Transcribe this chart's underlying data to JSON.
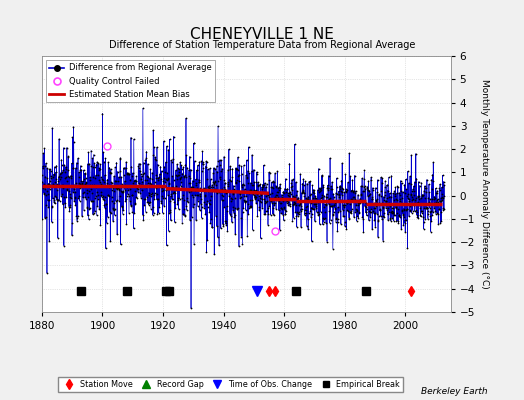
{
  "title": "CHENEYVILLE 1 NE",
  "subtitle": "Difference of Station Temperature Data from Regional Average",
  "ylabel": "Monthly Temperature Anomaly Difference (°C)",
  "xlim": [
    1880,
    2015
  ],
  "ylim": [
    -5,
    6
  ],
  "yticks": [
    -5,
    -4,
    -3,
    -2,
    -1,
    0,
    1,
    2,
    3,
    4,
    5,
    6
  ],
  "xticks": [
    1880,
    1900,
    1920,
    1940,
    1960,
    1980,
    2000
  ],
  "background_color": "#f0f0f0",
  "plot_bg_color": "#ffffff",
  "line_color": "#0000cc",
  "marker_color": "#000000",
  "bias_line_color": "#cc0000",
  "station_move_years": [
    1955,
    1957,
    2002
  ],
  "record_gap_years": [],
  "time_obs_change_years": [
    1951
  ],
  "empirical_break_years": [
    1893,
    1908,
    1921,
    1922,
    1964,
    1987
  ],
  "bias_segments": [
    {
      "x": [
        1880,
        1921
      ],
      "y": [
        0.4,
        0.4
      ]
    },
    {
      "x": [
        1921,
        1955
      ],
      "y": [
        0.3,
        0.1
      ]
    },
    {
      "x": [
        1955,
        1964
      ],
      "y": [
        -0.15,
        -0.15
      ]
    },
    {
      "x": [
        1964,
        1987
      ],
      "y": [
        -0.25,
        -0.25
      ]
    },
    {
      "x": [
        1987,
        2012
      ],
      "y": [
        -0.35,
        -0.35
      ]
    }
  ],
  "qc_failed": [
    {
      "year": 1901.5,
      "val": 2.15
    },
    {
      "year": 1957.0,
      "val": -1.5
    }
  ],
  "watermark": "Berkeley Earth",
  "seed": 17,
  "marker_bottom_y": -4.1
}
